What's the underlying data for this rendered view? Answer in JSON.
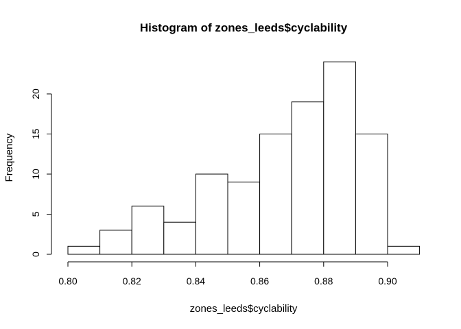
{
  "chart_data": {
    "type": "bar",
    "title": "Histogram of zones_leeds$cyclability",
    "xlabel": "zones_leeds$cyclability",
    "ylabel": "Frequency",
    "bins": [
      {
        "from": 0.8,
        "to": 0.81,
        "count": 1
      },
      {
        "from": 0.81,
        "to": 0.82,
        "count": 3
      },
      {
        "from": 0.82,
        "to": 0.83,
        "count": 6
      },
      {
        "from": 0.83,
        "to": 0.84,
        "count": 4
      },
      {
        "from": 0.84,
        "to": 0.85,
        "count": 10
      },
      {
        "from": 0.85,
        "to": 0.86,
        "count": 9
      },
      {
        "from": 0.86,
        "to": 0.87,
        "count": 15
      },
      {
        "from": 0.87,
        "to": 0.88,
        "count": 19
      },
      {
        "from": 0.88,
        "to": 0.89,
        "count": 24
      },
      {
        "from": 0.89,
        "to": 0.9,
        "count": 15
      },
      {
        "from": 0.9,
        "to": 0.91,
        "count": 1
      }
    ],
    "xticks": [
      "0.80",
      "0.82",
      "0.84",
      "0.86",
      "0.88",
      "0.90"
    ],
    "yticks": [
      "0",
      "5",
      "10",
      "15",
      "20"
    ],
    "xlim": [
      0.8,
      0.91
    ],
    "ylim": [
      0,
      24
    ],
    "grid": false,
    "colors": {
      "bar_fill": "#ffffff",
      "bar_stroke": "#000000"
    }
  }
}
